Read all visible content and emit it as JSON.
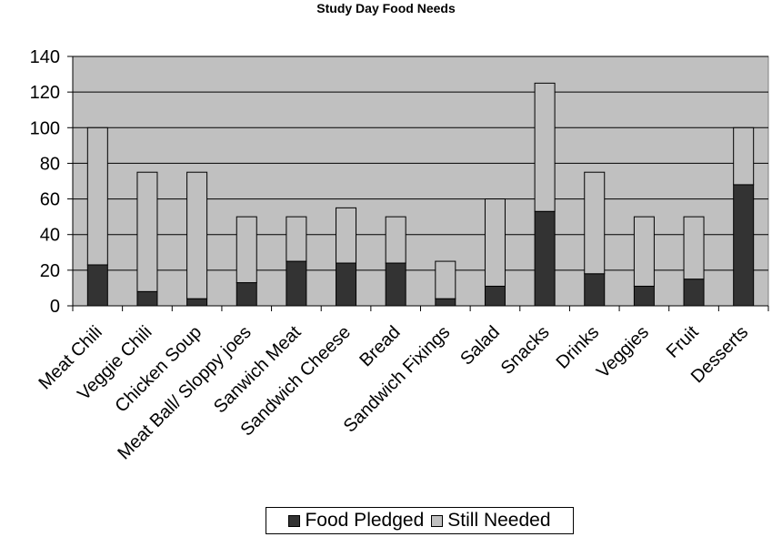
{
  "chart_data": {
    "type": "bar",
    "stacked": true,
    "title": "Study Day Food Needs",
    "xlabel": "",
    "ylabel": "",
    "ylim": [
      0,
      140
    ],
    "yticks": [
      0,
      20,
      40,
      60,
      80,
      100,
      120,
      140
    ],
    "grid": true,
    "legend_position": "bottom",
    "categories": [
      "Meat Chili",
      "Veggie Chili",
      "Chicken Soup",
      "Meat Ball/ Sloppy joes",
      "Sanwich Meat",
      "Sandwich Cheese",
      "Bread",
      "Sandwich Fixings",
      "Salad",
      "Snacks",
      "Drinks",
      "Veggies",
      "Fruit",
      "Desserts"
    ],
    "series": [
      {
        "name": "Food Pledged",
        "color": "#333333",
        "values": [
          23,
          8,
          4,
          13,
          25,
          24,
          24,
          4,
          11,
          53,
          18,
          11,
          15,
          68
        ]
      },
      {
        "name": "Still Needed",
        "color": "#c0c0c0",
        "values": [
          77,
          67,
          71,
          37,
          25,
          31,
          26,
          21,
          49,
          72,
          57,
          39,
          35,
          32
        ]
      }
    ],
    "plot_background": "#c0c0c0"
  }
}
